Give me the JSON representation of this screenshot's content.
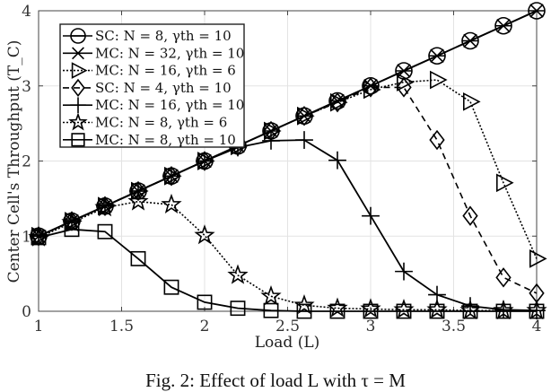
{
  "caption": "Fig. 2: Effect of load L with τ = M",
  "chart_data": {
    "type": "line",
    "title": "",
    "xlabel": "Load (L)",
    "ylabel": "Center Cell's Throughput (T_C)",
    "xlim": [
      1,
      4
    ],
    "ylim": [
      0,
      4
    ],
    "xticks": [
      1,
      1.5,
      2,
      2.5,
      3,
      3.5,
      4
    ],
    "xtick_labels": [
      "1",
      "1.5",
      "2",
      "2.5",
      "3",
      "3.5",
      "4"
    ],
    "yticks": [
      0,
      1,
      2,
      3,
      4
    ],
    "ytick_labels": [
      "0",
      "1",
      "2",
      "3",
      "4"
    ],
    "grid": true,
    "legend_position": "upper left",
    "x": [
      1.0,
      1.2,
      1.4,
      1.6,
      1.8,
      2.0,
      2.2,
      2.4,
      2.6,
      2.8,
      3.0,
      3.2,
      3.4,
      3.6,
      3.8,
      4.0
    ],
    "series": [
      {
        "name": "SC: N = 8, γth = 10",
        "marker": "circle-plus",
        "linestyle": "solid",
        "values": [
          1.0,
          1.2,
          1.4,
          1.6,
          1.8,
          2.0,
          2.2,
          2.4,
          2.6,
          2.8,
          3.0,
          3.2,
          3.4,
          3.6,
          3.8,
          4.0
        ]
      },
      {
        "name": "MC: N = 32, γth = 10",
        "marker": "x",
        "linestyle": "solid",
        "values": [
          1.0,
          1.2,
          1.4,
          1.6,
          1.8,
          2.0,
          2.2,
          2.4,
          2.6,
          2.8,
          3.0,
          3.2,
          3.4,
          3.6,
          3.8,
          4.0
        ]
      },
      {
        "name": "MC: N = 16, γth = 6",
        "marker": "triangle-right",
        "linestyle": "dotted",
        "values": [
          1.0,
          1.2,
          1.4,
          1.6,
          1.8,
          2.0,
          2.2,
          2.4,
          2.6,
          2.78,
          2.95,
          3.05,
          3.08,
          2.79,
          1.71,
          0.7
        ]
      },
      {
        "name": "SC: N = 4, γth = 10",
        "marker": "diamond",
        "linestyle": "dashed",
        "values": [
          1.0,
          1.2,
          1.4,
          1.6,
          1.8,
          2.0,
          2.2,
          2.4,
          2.6,
          2.78,
          2.98,
          2.98,
          2.28,
          1.27,
          0.45,
          0.24
        ]
      },
      {
        "name": "MC: N = 16, γth = 10",
        "marker": "plus",
        "linestyle": "solid",
        "values": [
          1.0,
          1.2,
          1.4,
          1.6,
          1.8,
          2.0,
          2.18,
          2.27,
          2.28,
          2.01,
          1.27,
          0.53,
          0.22,
          0.07,
          0.02,
          0.01
        ]
      },
      {
        "name": "MC: N = 8, γth = 6",
        "marker": "star",
        "linestyle": "dotted",
        "values": [
          0.98,
          1.18,
          1.38,
          1.46,
          1.42,
          1.01,
          0.48,
          0.2,
          0.08,
          0.04,
          0.03,
          0.02,
          0.02,
          0.01,
          0.01,
          0.01
        ]
      },
      {
        "name": "MC: N = 8, γth = 10",
        "marker": "square",
        "linestyle": "solid",
        "values": [
          0.98,
          1.09,
          1.06,
          0.7,
          0.32,
          0.12,
          0.04,
          0.01,
          0.0,
          0.0,
          0.0,
          0.0,
          0.0,
          0.0,
          0.0,
          0.0
        ]
      }
    ]
  }
}
